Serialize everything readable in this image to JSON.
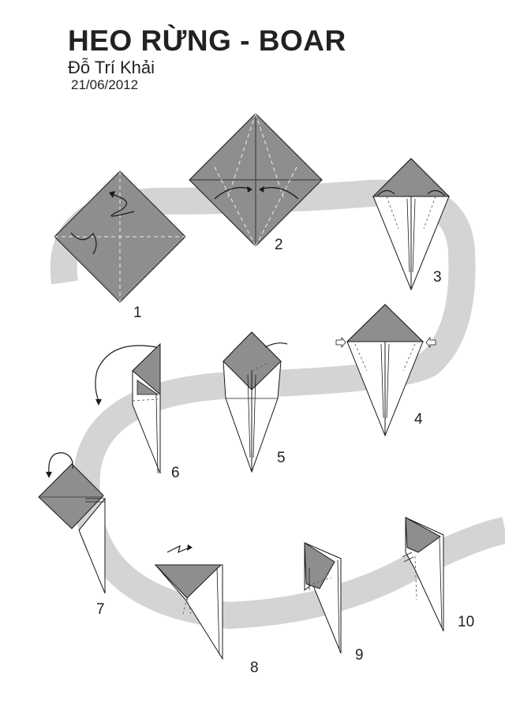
{
  "header": {
    "title": "HEO RỪNG - BOAR",
    "author": "Đỗ Trí Khải",
    "date": "21/06/2012"
  },
  "steps": [
    {
      "label": "1"
    },
    {
      "label": "2"
    },
    {
      "label": "3"
    },
    {
      "label": "4"
    },
    {
      "label": "5"
    },
    {
      "label": "6"
    },
    {
      "label": "7"
    },
    {
      "label": "8"
    },
    {
      "label": "9"
    },
    {
      "label": "10"
    }
  ],
  "colors": {
    "paper_colored": "#8e8e8e",
    "paper_white": "#ffffff",
    "path_band": "#d4d4d4",
    "line": "#1a1a1a"
  }
}
